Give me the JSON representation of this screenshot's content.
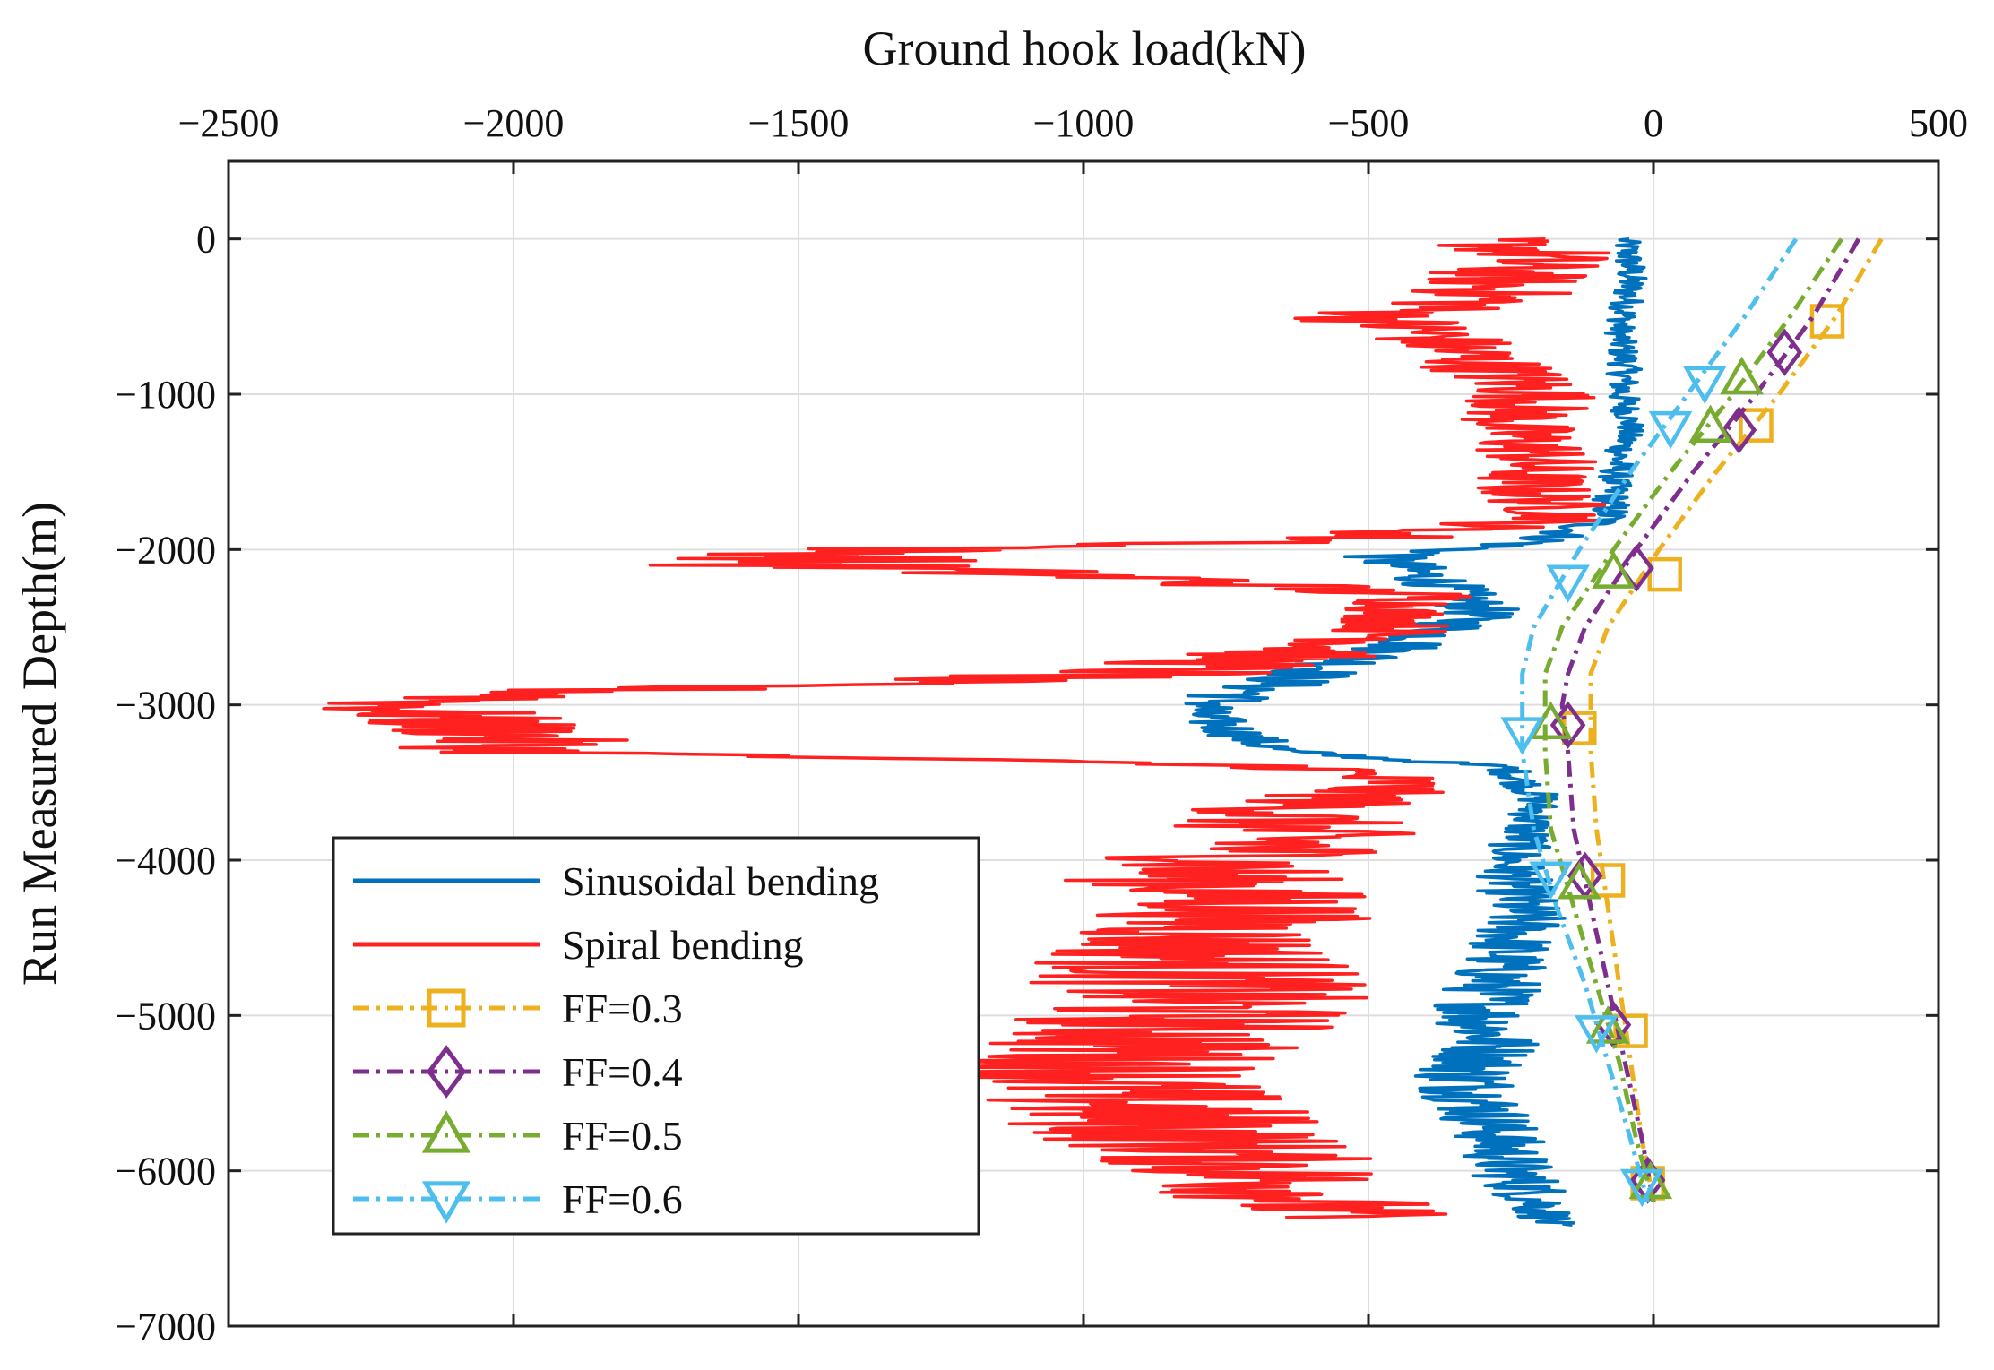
{
  "chart_data": {
    "type": "line",
    "title": "",
    "xlabel": "Ground hook load(kN)",
    "ylabel": "Run Measured Depth(m)",
    "xlim": [
      -2500,
      500
    ],
    "ylim": [
      -7000,
      500
    ],
    "x_ticks": [
      -2500,
      -2000,
      -1500,
      -1000,
      -500,
      0,
      500
    ],
    "x_tick_labels": [
      "−2500",
      "−2000",
      "−1500",
      "−1000",
      "−500",
      "0",
      "500"
    ],
    "y_ticks": [
      0,
      -1000,
      -2000,
      -3000,
      -4000,
      -5000,
      -6000,
      -7000
    ],
    "y_tick_labels": [
      "0",
      "−1000",
      "−2000",
      "−3000",
      "−4000",
      "−5000",
      "−6000",
      "−7000"
    ],
    "x_axis_position": "top",
    "grid": true,
    "legend_position": "lower-left",
    "series": [
      {
        "name": "Sinusoidal bending",
        "color": "#0072BD",
        "style": "solid",
        "marker": "none",
        "depth": [
          0,
          -200,
          -400,
          -600,
          -800,
          -1000,
          -1200,
          -1400,
          -1600,
          -1800,
          -1950,
          -2050,
          -2200,
          -2400,
          -2600,
          -2800,
          -2950,
          -3050,
          -3200,
          -3300,
          -3400,
          -3600,
          -3800,
          -4000,
          -4200,
          -4400,
          -4600,
          -4800,
          -5000,
          -5200,
          -5400,
          -5600,
          -5800,
          -6000,
          -6200,
          -6350
        ],
        "load": [
          -50,
          -40,
          -45,
          -60,
          -50,
          -55,
          -40,
          -60,
          -70,
          -80,
          -200,
          -480,
          -380,
          -300,
          -420,
          -600,
          -740,
          -800,
          -720,
          -650,
          -260,
          -200,
          -220,
          -250,
          -240,
          -230,
          -260,
          -280,
          -300,
          -280,
          -330,
          -300,
          -270,
          -250,
          -200,
          -180
        ],
        "jitter_amp": [
          25,
          30,
          30,
          25,
          30,
          30,
          25,
          30,
          30,
          40,
          60,
          80,
          70,
          70,
          80,
          90,
          90,
          60,
          60,
          60,
          40,
          40,
          50,
          60,
          70,
          80,
          80,
          90,
          90,
          90,
          100,
          90,
          80,
          80,
          70,
          40
        ]
      },
      {
        "name": "Spiral bending",
        "color": "#FF2020",
        "style": "solid",
        "marker": "none",
        "depth": [
          0,
          -100,
          -200,
          -400,
          -500,
          -600,
          -800,
          -1000,
          -1200,
          -1400,
          -1600,
          -1800,
          -1950,
          -2000,
          -2100,
          -2200,
          -2300,
          -2400,
          -2500,
          -2600,
          -2700,
          -2800,
          -2900,
          -3000,
          -3100,
          -3200,
          -3300,
          -3400,
          -3500,
          -3700,
          -3900,
          -4100,
          -4300,
          -4500,
          -4700,
          -4900,
          -5100,
          -5300,
          -5500,
          -5700,
          -5900,
          -6100,
          -6300
        ],
        "load": [
          -300,
          -200,
          -250,
          -300,
          -500,
          -400,
          -300,
          -200,
          -250,
          -200,
          -220,
          -150,
          -600,
          -1350,
          -1500,
          -800,
          -400,
          -450,
          -450,
          -500,
          -700,
          -900,
          -1800,
          -2200,
          -2100,
          -2000,
          -2000,
          -600,
          -450,
          -650,
          -650,
          -800,
          -700,
          -800,
          -800,
          -800,
          -850,
          -950,
          -950,
          -850,
          -750,
          -650,
          -550
        ],
        "jitter_amp": [
          120,
          150,
          150,
          150,
          150,
          130,
          120,
          120,
          110,
          110,
          110,
          100,
          200,
          250,
          300,
          200,
          120,
          100,
          100,
          150,
          200,
          250,
          250,
          200,
          200,
          200,
          200,
          150,
          120,
          200,
          250,
          250,
          250,
          250,
          300,
          300,
          300,
          300,
          300,
          300,
          250,
          250,
          200
        ]
      },
      {
        "name": "FF=0.3",
        "color": "#EDB120",
        "style": "dashdot",
        "marker": "square",
        "depth": [
          0,
          -500,
          -1000,
          -1500,
          -2000,
          -2500,
          -2800,
          -3000,
          -3300,
          -3800,
          -4300,
          -4800,
          -5300,
          -5800,
          -6200
        ],
        "load": [
          400,
          320,
          220,
          110,
          10,
          -80,
          -110,
          -110,
          -110,
          -100,
          -80,
          -60,
          -40,
          -20,
          0
        ],
        "marker_depths": [
          -530,
          -1200,
          -2160,
          -3150,
          -4130,
          -5100,
          -6080
        ],
        "marker_loads": [
          305,
          180,
          20,
          -130,
          -80,
          -40,
          -10
        ]
      },
      {
        "name": "FF=0.4",
        "color": "#7E2F8E",
        "style": "dashdot",
        "marker": "diamond",
        "depth": [
          0,
          -500,
          -1000,
          -1500,
          -2000,
          -2500,
          -2800,
          -3000,
          -3300,
          -3800,
          -4300,
          -4800,
          -5300,
          -5800,
          -6200
        ],
        "load": [
          360,
          280,
          180,
          70,
          -30,
          -120,
          -150,
          -160,
          -150,
          -140,
          -110,
          -80,
          -50,
          -20,
          0
        ],
        "marker_depths": [
          -730,
          -1230,
          -2120,
          -3130,
          -4100,
          -5060,
          -6060
        ],
        "marker_loads": [
          230,
          150,
          -30,
          -150,
          -120,
          -70,
          -10
        ]
      },
      {
        "name": "FF=0.5",
        "color": "#77AC30",
        "style": "dashdot",
        "marker": "triangle-up",
        "depth": [
          0,
          -500,
          -1000,
          -1500,
          -2000,
          -2500,
          -2800,
          -3000,
          -3300,
          -3800,
          -4300,
          -4800,
          -5300,
          -5800,
          -6200
        ],
        "load": [
          330,
          240,
          140,
          30,
          -70,
          -160,
          -190,
          -190,
          -190,
          -180,
          -140,
          -100,
          -60,
          -30,
          0
        ],
        "marker_depths": [
          -900,
          -1210,
          -2150,
          -3120,
          -4150,
          -5080,
          -6080
        ],
        "marker_loads": [
          155,
          100,
          -70,
          -180,
          -130,
          -80,
          -5
        ]
      },
      {
        "name": "FF=0.6",
        "color": "#4DBEEE",
        "style": "dashdot",
        "marker": "triangle-down",
        "depth": [
          0,
          -500,
          -1000,
          -1500,
          -2000,
          -2500,
          -2800,
          -3000,
          -3300,
          -3800,
          -4300,
          -4800,
          -5300,
          -5800,
          -6200
        ],
        "load": [
          250,
          160,
          60,
          -40,
          -130,
          -210,
          -230,
          -230,
          -230,
          -210,
          -170,
          -120,
          -80,
          -40,
          -10
        ],
        "marker_depths": [
          -920,
          -1210,
          -2200,
          -3180,
          -4110,
          -5100,
          -6090
        ],
        "marker_loads": [
          90,
          30,
          -150,
          -230,
          -180,
          -100,
          -20
        ]
      }
    ]
  }
}
